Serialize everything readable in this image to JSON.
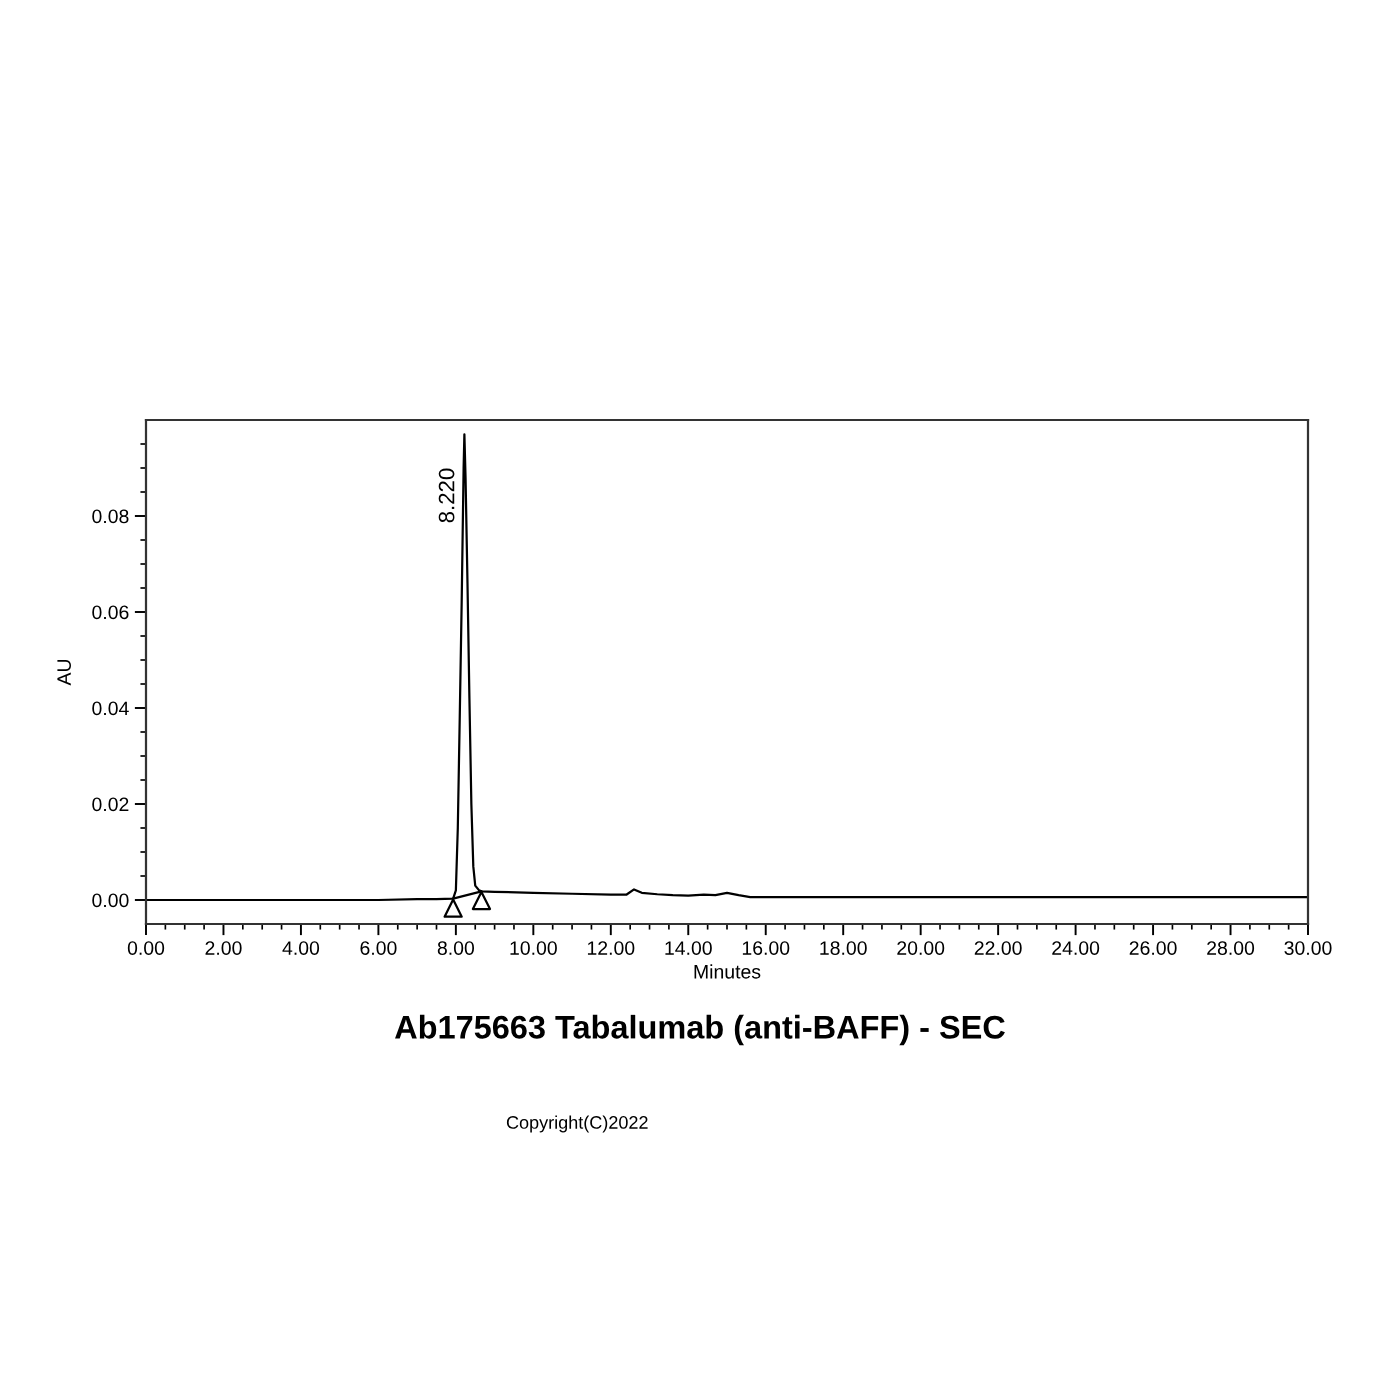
{
  "chart_data": {
    "type": "line",
    "title": "Ab175663 Tabalumab (anti-BAFF) - SEC",
    "xlabel": "Minutes",
    "ylabel": "AU",
    "annotations": [
      "Copyright(C)2022",
      {
        "text": "8.220",
        "x": 8.22,
        "y": 0.097
      }
    ],
    "series": [
      {
        "color": "#000000",
        "x": [
          0,
          1,
          2,
          3,
          4,
          5,
          6,
          7,
          7.5,
          7.93,
          8.0,
          8.05,
          8.1,
          8.15,
          8.2,
          8.22,
          8.25,
          8.3,
          8.35,
          8.4,
          8.45,
          8.5,
          8.6,
          8.66,
          9,
          10,
          11,
          12,
          12.4,
          12.6,
          12.8,
          13.2,
          13.6,
          14.0,
          14.4,
          14.7,
          15.0,
          15.3,
          15.6,
          16,
          18,
          20,
          22,
          24,
          26,
          28,
          30
        ],
        "values": [
          0.0,
          0.0,
          0.0,
          0.0,
          0.0,
          0.0,
          0.0,
          0.0002,
          0.0002,
          0.0003,
          0.002,
          0.015,
          0.038,
          0.062,
          0.09,
          0.097,
          0.088,
          0.066,
          0.042,
          0.02,
          0.007,
          0.003,
          0.002,
          0.0018,
          0.0017,
          0.0015,
          0.0013,
          0.0011,
          0.0011,
          0.0022,
          0.0015,
          0.0012,
          0.001,
          0.0009,
          0.0011,
          0.001,
          0.0015,
          0.001,
          0.0006,
          0.0006,
          0.0006,
          0.0006,
          0.0006,
          0.0006,
          0.0006,
          0.0006,
          0.0006
        ]
      },
      {
        "color": "#000000",
        "x": [
          7.93,
          8.66
        ],
        "values": [
          0.0003,
          0.0018
        ]
      },
      {
        "type": "scatter",
        "color": "#000000",
        "marker": "triangle",
        "x": [
          7.93,
          8.66
        ],
        "values": [
          -0.0017,
          -0.0001
        ]
      }
    ],
    "xlim": [
      0,
      30
    ],
    "xticks": [
      {
        "value": 0,
        "label": "0.00"
      },
      {
        "value": 0.5,
        "label": null
      },
      {
        "value": 1,
        "label": null
      },
      {
        "value": 1.5,
        "label": null
      },
      {
        "value": 2,
        "label": "2.00"
      },
      {
        "value": 2.5,
        "label": null
      },
      {
        "value": 3,
        "label": null
      },
      {
        "value": 3.5,
        "label": null
      },
      {
        "value": 4,
        "label": "4.00"
      },
      {
        "value": 4.5,
        "label": null
      },
      {
        "value": 5,
        "label": null
      },
      {
        "value": 5.5,
        "label": null
      },
      {
        "value": 6,
        "label": "6.00"
      },
      {
        "value": 6.5,
        "label": null
      },
      {
        "value": 7,
        "label": null
      },
      {
        "value": 7.5,
        "label": null
      },
      {
        "value": 8,
        "label": "8.00"
      },
      {
        "value": 8.5,
        "label": null
      },
      {
        "value": 9,
        "label": null
      },
      {
        "value": 9.5,
        "label": null
      },
      {
        "value": 10,
        "label": "10.00"
      },
      {
        "value": 10.5,
        "label": null
      },
      {
        "value": 11,
        "label": null
      },
      {
        "value": 11.5,
        "label": null
      },
      {
        "value": 12,
        "label": "12.00"
      },
      {
        "value": 12.5,
        "label": null
      },
      {
        "value": 13,
        "label": null
      },
      {
        "value": 13.5,
        "label": null
      },
      {
        "value": 14,
        "label": "14.00"
      },
      {
        "value": 14.5,
        "label": null
      },
      {
        "value": 15,
        "label": null
      },
      {
        "value": 15.5,
        "label": null
      },
      {
        "value": 16,
        "label": "16.00"
      },
      {
        "value": 16.5,
        "label": null
      },
      {
        "value": 17,
        "label": null
      },
      {
        "value": 17.5,
        "label": null
      },
      {
        "value": 18,
        "label": "18.00"
      },
      {
        "value": 18.5,
        "label": null
      },
      {
        "value": 19,
        "label": null
      },
      {
        "value": 19.5,
        "label": null
      },
      {
        "value": 20,
        "label": "20.00"
      },
      {
        "value": 20.5,
        "label": null
      },
      {
        "value": 21,
        "label": null
      },
      {
        "value": 21.5,
        "label": null
      },
      {
        "value": 22,
        "label": "22.00"
      },
      {
        "value": 22.5,
        "label": null
      },
      {
        "value": 23,
        "label": null
      },
      {
        "value": 23.5,
        "label": null
      },
      {
        "value": 24,
        "label": "24.00"
      },
      {
        "value": 24.5,
        "label": null
      },
      {
        "value": 25,
        "label": null
      },
      {
        "value": 25.5,
        "label": null
      },
      {
        "value": 26,
        "label": "26.00"
      },
      {
        "value": 26.5,
        "label": null
      },
      {
        "value": 27,
        "label": null
      },
      {
        "value": 27.5,
        "label": null
      },
      {
        "value": 28,
        "label": "28.00"
      },
      {
        "value": 28.5,
        "label": null
      },
      {
        "value": 29,
        "label": null
      },
      {
        "value": 29.5,
        "label": null
      },
      {
        "value": 30,
        "label": "30.00"
      }
    ],
    "ylim": [
      -0.005,
      0.1
    ],
    "yticks": [
      {
        "value": 0,
        "label": "0.00"
      },
      {
        "value": 0.005,
        "label": null
      },
      {
        "value": 0.01,
        "label": null
      },
      {
        "value": 0.015,
        "label": null
      },
      {
        "value": 0.02,
        "label": "0.02"
      },
      {
        "value": 0.025,
        "label": null
      },
      {
        "value": 0.03,
        "label": null
      },
      {
        "value": 0.035,
        "label": null
      },
      {
        "value": 0.04,
        "label": "0.04"
      },
      {
        "value": 0.045,
        "label": null
      },
      {
        "value": 0.05,
        "label": null
      },
      {
        "value": 0.055,
        "label": null
      },
      {
        "value": 0.06,
        "label": "0.06"
      },
      {
        "value": 0.065,
        "label": null
      },
      {
        "value": 0.07,
        "label": null
      },
      {
        "value": 0.075,
        "label": null
      },
      {
        "value": 0.08,
        "label": "0.08"
      },
      {
        "value": 0.085,
        "label": null
      },
      {
        "value": 0.09,
        "label": null
      },
      {
        "value": 0.095,
        "label": null
      }
    ]
  }
}
